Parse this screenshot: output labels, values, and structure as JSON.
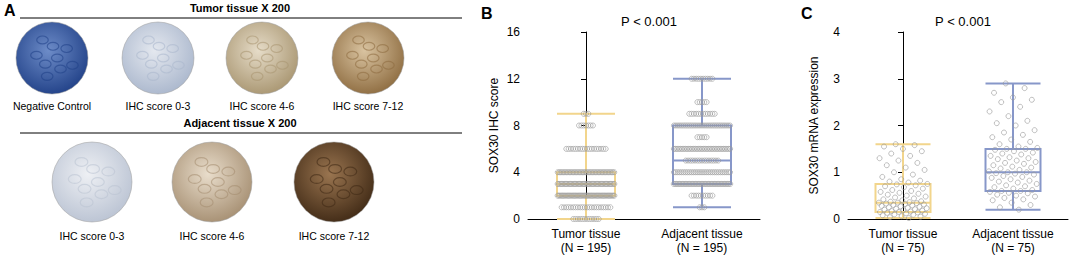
{
  "image_panel": {
    "panel_label": "A",
    "rows": [
      {
        "title": "Tumor tissue X 200",
        "images": [
          "Negative Control",
          "IHC score 0-3",
          "IHC score 4-6",
          "IHC score 7-12"
        ]
      },
      {
        "title": "Adjacent tissue X 200",
        "images": [
          "IHC score 0-3",
          "IHC score 4-6",
          "IHC score 7-12"
        ]
      }
    ]
  },
  "chart_data": [
    {
      "type": "boxplot",
      "panel_label": "B",
      "title": "P < 0.001",
      "ylabel": "SOX30 IHC score",
      "categories": [
        "Tumor tissue\n(N = 195)",
        "Adjacent tissue\n(N = 195)"
      ],
      "colors": [
        "#f2d58c",
        "#8797c9"
      ],
      "boxes": [
        {
          "min": 0,
          "q1": 2,
          "median": 3,
          "q3": 4,
          "max": 9
        },
        {
          "min": 1,
          "q1": 3,
          "median": 5,
          "q3": 8,
          "max": 12
        }
      ],
      "point_counts": [
        [
          {
            "value": 0,
            "count": 12
          },
          {
            "value": 1,
            "count": 22
          },
          {
            "value": 2,
            "count": 48
          },
          {
            "value": 3,
            "count": 45
          },
          {
            "value": 4,
            "count": 40
          },
          {
            "value": 6,
            "count": 18
          },
          {
            "value": 8,
            "count": 7
          },
          {
            "value": 9,
            "count": 3
          }
        ],
        [
          {
            "value": 1,
            "count": 3
          },
          {
            "value": 2,
            "count": 10
          },
          {
            "value": 3,
            "count": 40
          },
          {
            "value": 4,
            "count": 30
          },
          {
            "value": 5,
            "count": 15
          },
          {
            "value": 6,
            "count": 35
          },
          {
            "value": 7,
            "count": 5
          },
          {
            "value": 8,
            "count": 30
          },
          {
            "value": 9,
            "count": 12
          },
          {
            "value": 10,
            "count": 5
          },
          {
            "value": 12,
            "count": 10
          }
        ]
      ],
      "marker": "circle",
      "ylim": [
        0,
        16
      ],
      "yticks": [
        0,
        4,
        8,
        12,
        16
      ],
      "grid": false
    },
    {
      "type": "boxplot",
      "panel_label": "C",
      "title": "P < 0.001",
      "ylabel": "SOX30 mRNA expression",
      "categories": [
        "Tumor tissue\n(N = 75)",
        "Adjacent tissue\n(N = 75)"
      ],
      "colors": [
        "#f2d58c",
        "#8797c9"
      ],
      "boxes": [
        {
          "min": 0.02,
          "q1": 0.15,
          "median": 0.35,
          "q3": 0.75,
          "max": 1.6
        },
        {
          "min": 0.2,
          "q1": 0.6,
          "median": 1.0,
          "q3": 1.5,
          "max": 2.9
        }
      ],
      "points": [
        [
          0.02,
          0.04,
          0.05,
          0.06,
          0.08,
          0.09,
          0.1,
          0.11,
          0.12,
          0.13,
          0.14,
          0.15,
          0.15,
          0.16,
          0.17,
          0.18,
          0.19,
          0.2,
          0.21,
          0.22,
          0.23,
          0.24,
          0.25,
          0.26,
          0.27,
          0.28,
          0.29,
          0.3,
          0.31,
          0.32,
          0.33,
          0.34,
          0.35,
          0.35,
          0.36,
          0.37,
          0.38,
          0.4,
          0.42,
          0.44,
          0.46,
          0.48,
          0.5,
          0.52,
          0.54,
          0.56,
          0.58,
          0.6,
          0.62,
          0.65,
          0.68,
          0.7,
          0.72,
          0.74,
          0.75,
          0.78,
          0.8,
          0.82,
          0.85,
          0.9,
          0.95,
          1.0,
          1.05,
          1.1,
          1.15,
          1.2,
          1.25,
          1.3,
          1.35,
          1.4,
          1.45,
          1.5,
          1.55,
          1.58,
          1.6
        ],
        [
          0.2,
          0.25,
          0.3,
          0.35,
          0.4,
          0.42,
          0.45,
          0.48,
          0.5,
          0.52,
          0.55,
          0.56,
          0.58,
          0.6,
          0.6,
          0.62,
          0.65,
          0.68,
          0.7,
          0.72,
          0.75,
          0.78,
          0.8,
          0.82,
          0.85,
          0.88,
          0.9,
          0.92,
          0.95,
          0.97,
          0.98,
          1.0,
          1.0,
          1.02,
          1.05,
          1.08,
          1.1,
          1.12,
          1.15,
          1.18,
          1.2,
          1.22,
          1.25,
          1.28,
          1.3,
          1.32,
          1.35,
          1.38,
          1.4,
          1.42,
          1.45,
          1.48,
          1.5,
          1.5,
          1.52,
          1.55,
          1.6,
          1.65,
          1.7,
          1.75,
          1.8,
          1.85,
          1.9,
          2.0,
          2.05,
          2.1,
          2.2,
          2.3,
          2.4,
          2.5,
          2.55,
          2.6,
          2.7,
          2.8,
          2.9
        ]
      ],
      "marker": "circle",
      "ylim": [
        0,
        4
      ],
      "yticks": [
        0,
        1,
        2,
        3,
        4
      ],
      "grid": false
    }
  ]
}
